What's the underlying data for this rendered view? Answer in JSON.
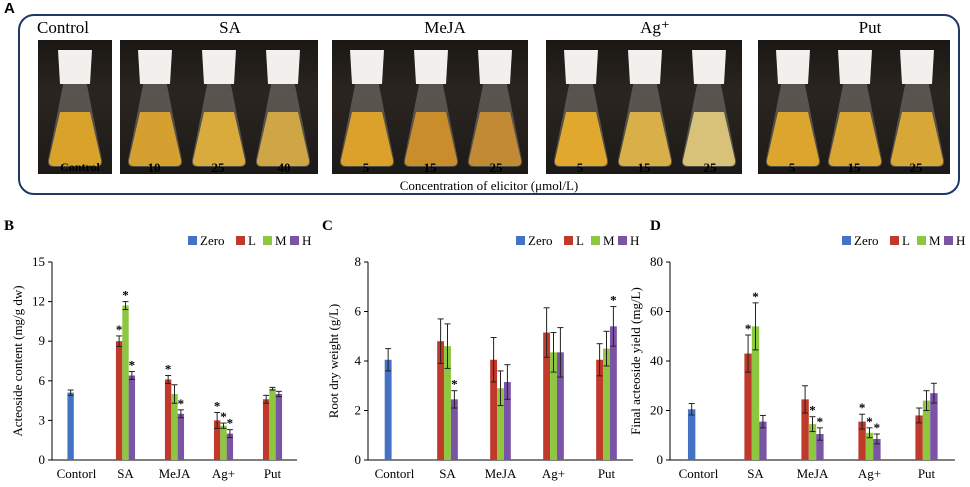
{
  "panel_a": {
    "letter": "A",
    "groups": [
      {
        "title": "Control",
        "concentrations": [
          "Control"
        ]
      },
      {
        "title": "SA",
        "concentrations": [
          "10",
          "25",
          "40"
        ]
      },
      {
        "title": "MeJA",
        "concentrations": [
          "5",
          "15",
          "25"
        ]
      },
      {
        "title": "Ag⁺",
        "concentrations": [
          "5",
          "15",
          "25"
        ]
      },
      {
        "title": "Put",
        "concentrations": [
          "5",
          "15",
          "25"
        ]
      }
    ],
    "axis_label": "Concentration of elicitor (μmol/L)"
  },
  "legend": [
    "Zero",
    "L",
    "M",
    "H"
  ],
  "colors": {
    "Zero": "#4472c4",
    "L": "#c0392b",
    "M": "#8dc63f",
    "H": "#7b54a6",
    "frame": "#1f3864"
  },
  "chart_data": [
    {
      "letter": "B",
      "type": "bar",
      "ylabel": "Acteoside content  (mg/g  dw)",
      "ylim": [
        0,
        15
      ],
      "yticks": [
        "0",
        "3",
        "6",
        "9",
        "12",
        "15"
      ],
      "categories": [
        "Contorl",
        "SA",
        "MeJA",
        "Ag+",
        "Put"
      ],
      "series": [
        {
          "name": "Zero",
          "values": [
            5.1,
            null,
            null,
            null,
            null
          ],
          "errors": [
            0.2,
            null,
            null,
            null,
            null
          ],
          "sig": [
            false,
            false,
            false,
            false,
            false
          ]
        },
        {
          "name": "L",
          "values": [
            null,
            9.0,
            6.1,
            3.0,
            4.6
          ],
          "errors": [
            null,
            0.4,
            0.3,
            0.6,
            0.3
          ],
          "sig": [
            false,
            true,
            true,
            true,
            false
          ]
        },
        {
          "name": "M",
          "values": [
            null,
            11.7,
            5.0,
            2.6,
            5.4
          ],
          "errors": [
            null,
            0.3,
            0.7,
            0.2,
            0.1
          ],
          "sig": [
            false,
            true,
            false,
            true,
            false
          ]
        },
        {
          "name": "H",
          "values": [
            null,
            6.4,
            3.5,
            2.0,
            5.0
          ],
          "errors": [
            null,
            0.3,
            0.3,
            0.3,
            0.2
          ],
          "sig": [
            false,
            true,
            true,
            true,
            false
          ]
        }
      ]
    },
    {
      "letter": "C",
      "type": "bar",
      "ylabel": "Root dry weight (g/L)",
      "ylim": [
        0,
        8
      ],
      "yticks": [
        "0",
        "2",
        "4",
        "6",
        "8"
      ],
      "categories": [
        "Contorl",
        "SA",
        "MeJA",
        "Ag+",
        "Put"
      ],
      "series": [
        {
          "name": "Zero",
          "values": [
            4.05,
            null,
            null,
            null,
            null
          ],
          "errors": [
            0.45,
            null,
            null,
            null,
            null
          ],
          "sig": [
            false,
            false,
            false,
            false,
            false
          ]
        },
        {
          "name": "L",
          "values": [
            null,
            4.8,
            4.05,
            5.15,
            4.05
          ],
          "errors": [
            null,
            0.9,
            0.9,
            1.0,
            0.65
          ],
          "sig": [
            false,
            false,
            false,
            false,
            false
          ]
        },
        {
          "name": "M",
          "values": [
            null,
            4.6,
            2.9,
            4.35,
            4.5
          ],
          "errors": [
            null,
            0.9,
            0.7,
            0.8,
            0.7
          ],
          "sig": [
            false,
            false,
            false,
            false,
            false
          ]
        },
        {
          "name": "H",
          "values": [
            null,
            2.45,
            3.15,
            4.35,
            5.4
          ],
          "errors": [
            null,
            0.35,
            0.7,
            1.0,
            0.8
          ],
          "sig": [
            false,
            true,
            false,
            false,
            true
          ]
        }
      ]
    },
    {
      "letter": "D",
      "type": "bar",
      "ylabel": "Final acteoside yield (mg/L)",
      "ylim": [
        0,
        80
      ],
      "yticks": [
        "0",
        "20",
        "40",
        "60",
        "80"
      ],
      "categories": [
        "Contorl",
        "SA",
        "MeJA",
        "Ag+",
        "Put"
      ],
      "series": [
        {
          "name": "Zero",
          "values": [
            20.5,
            null,
            null,
            null,
            null
          ],
          "errors": [
            2.3,
            null,
            null,
            null,
            null
          ],
          "sig": [
            false,
            false,
            false,
            false,
            false
          ]
        },
        {
          "name": "L",
          "values": [
            null,
            43.0,
            24.5,
            15.5,
            18.0
          ],
          "errors": [
            null,
            7.5,
            5.5,
            3.0,
            3.0
          ],
          "sig": [
            false,
            true,
            false,
            true,
            false
          ]
        },
        {
          "name": "M",
          "values": [
            null,
            54.0,
            14.5,
            11.0,
            24.0
          ],
          "errors": [
            null,
            9.5,
            3.0,
            2.0,
            4.0
          ],
          "sig": [
            false,
            true,
            true,
            true,
            false
          ]
        },
        {
          "name": "H",
          "values": [
            null,
            15.5,
            10.5,
            8.5,
            27.0
          ],
          "errors": [
            null,
            2.5,
            2.5,
            2.0,
            4.0
          ],
          "sig": [
            false,
            false,
            true,
            true,
            false
          ]
        }
      ]
    }
  ]
}
